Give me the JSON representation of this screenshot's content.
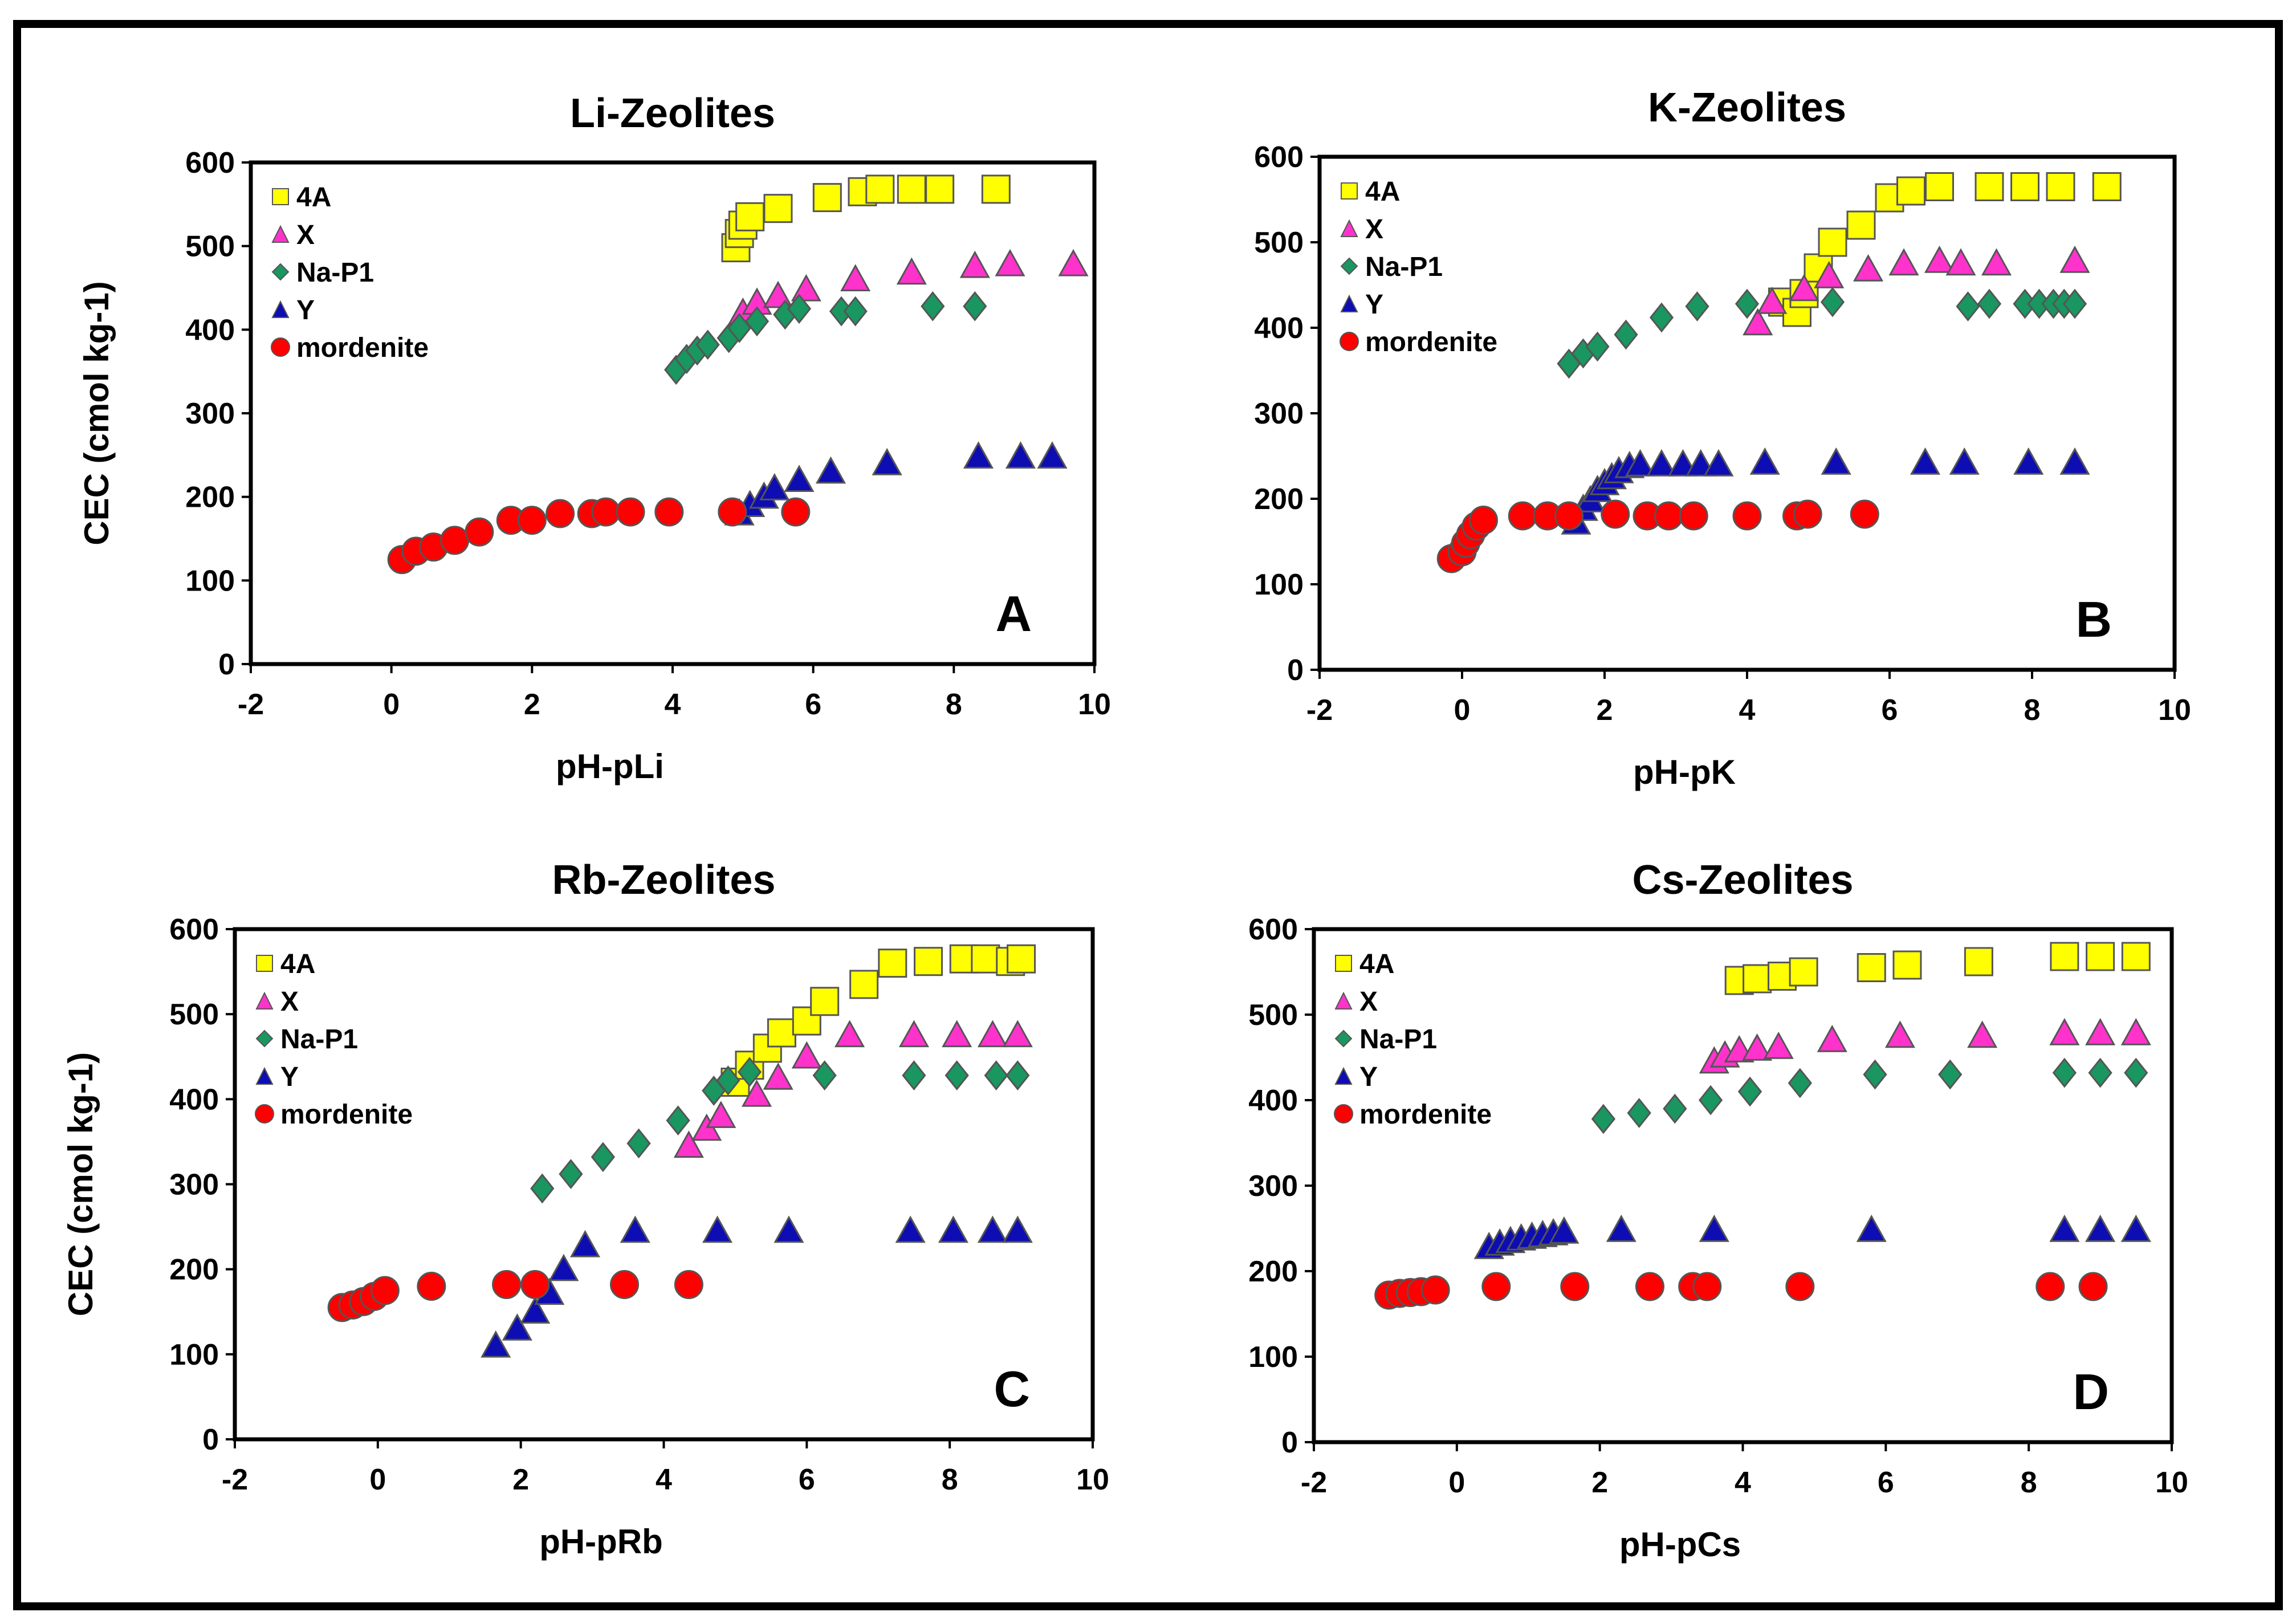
{
  "colors": {
    "4A": "#ffff00",
    "X": "#ff33cc",
    "Na-P1": "#1a9660",
    "Y": "#0d0db3",
    "mordenite": "#ff0000"
  },
  "chart_data": [
    {
      "type": "scatter",
      "title": "Li-Zeolites",
      "letter": "A",
      "xlabel": "pH-pLi",
      "ylabel": "CEC (cmol kg-1)",
      "xlim": [
        -2,
        10
      ],
      "ylim": [
        0,
        600
      ],
      "xticks": [
        "-2",
        "0",
        "2",
        "4",
        "6",
        "8",
        "10"
      ],
      "yticks": [
        "0",
        "100",
        "200",
        "300",
        "400",
        "500",
        "600"
      ],
      "series": [
        {
          "name": "4A",
          "marker": "square",
          "x": [
            4.9,
            4.95,
            5.0,
            5.1,
            5.5,
            6.2,
            6.7,
            6.95,
            7.4,
            7.8,
            8.6
          ],
          "y": [
            498,
            515,
            525,
            535,
            545,
            558,
            565,
            568,
            568,
            568,
            568
          ]
        },
        {
          "name": "X",
          "marker": "triangle",
          "x": [
            5.0,
            5.2,
            5.5,
            5.9,
            6.6,
            7.4,
            8.3,
            8.8,
            9.7
          ],
          "y": [
            420,
            432,
            440,
            448,
            460,
            468,
            476,
            478,
            478
          ]
        },
        {
          "name": "Na-P1",
          "marker": "diamond",
          "x": [
            4.05,
            4.2,
            4.35,
            4.5,
            4.8,
            4.95,
            5.2,
            5.6,
            5.8,
            6.4,
            6.6,
            7.7,
            8.3
          ],
          "y": [
            352,
            365,
            375,
            382,
            390,
            402,
            410,
            418,
            425,
            422,
            422,
            428,
            428
          ]
        },
        {
          "name": "Y",
          "marker": "triangle",
          "x": [
            4.95,
            5.1,
            5.3,
            5.45,
            5.8,
            6.25,
            7.05,
            8.35,
            8.95,
            9.4
          ],
          "y": [
            180,
            190,
            200,
            210,
            220,
            230,
            240,
            248,
            248,
            248
          ]
        },
        {
          "name": "mordenite",
          "marker": "circle",
          "x": [
            0.15,
            0.35,
            0.6,
            0.9,
            1.25,
            1.7,
            2.0,
            2.4,
            2.85,
            3.05,
            3.4,
            3.95,
            4.85,
            5.75
          ],
          "y": [
            125,
            135,
            140,
            148,
            158,
            172,
            172,
            180,
            180,
            182,
            182,
            182,
            182,
            182
          ]
        }
      ]
    },
    {
      "type": "scatter",
      "title": "K-Zeolites",
      "letter": "B",
      "xlabel": "pH-pK",
      "ylabel": "",
      "xlim": [
        -2,
        10
      ],
      "ylim": [
        0,
        600
      ],
      "xticks": [
        "-2",
        "0",
        "2",
        "4",
        "6",
        "8",
        "10"
      ],
      "yticks": [
        "0",
        "100",
        "200",
        "300",
        "400",
        "500",
        "600"
      ],
      "series": [
        {
          "name": "4A",
          "marker": "square",
          "x": [
            4.5,
            4.7,
            4.8,
            5.0,
            5.2,
            5.6,
            6.0,
            6.3,
            6.7,
            7.4,
            7.9,
            8.4,
            9.05
          ],
          "y": [
            430,
            418,
            440,
            470,
            500,
            520,
            552,
            560,
            565,
            565,
            565,
            565,
            565
          ]
        },
        {
          "name": "X",
          "marker": "triangle",
          "x": [
            4.15,
            4.35,
            4.8,
            5.15,
            5.7,
            6.2,
            6.7,
            7.0,
            7.5,
            8.6
          ],
          "y": [
            405,
            430,
            445,
            460,
            468,
            475,
            478,
            475,
            475,
            478
          ]
        },
        {
          "name": "Na-P1",
          "marker": "diamond",
          "x": [
            1.5,
            1.7,
            1.9,
            2.3,
            2.8,
            3.3,
            4.0,
            5.2,
            7.1,
            7.4,
            7.9,
            8.1,
            8.3,
            8.45,
            8.6
          ],
          "y": [
            358,
            370,
            378,
            392,
            412,
            425,
            428,
            430,
            425,
            428,
            428,
            428,
            428,
            428,
            428
          ]
        },
        {
          "name": "Y",
          "marker": "triangle",
          "x": [
            1.6,
            1.7,
            1.8,
            1.9,
            2.0,
            2.1,
            2.2,
            2.35,
            2.5,
            2.8,
            3.1,
            3.35,
            3.6,
            4.25,
            5.25,
            6.5,
            7.05,
            7.95,
            8.6
          ],
          "y": [
            172,
            188,
            198,
            210,
            218,
            225,
            232,
            238,
            240,
            240,
            240,
            240,
            240,
            242,
            242,
            242,
            242,
            242,
            242
          ]
        },
        {
          "name": "mordenite",
          "marker": "circle",
          "x": [
            -0.15,
            0.0,
            0.05,
            0.12,
            0.2,
            0.3,
            0.85,
            1.2,
            1.5,
            2.15,
            2.6,
            2.9,
            3.25,
            4.0,
            4.7,
            4.85,
            5.65
          ],
          "y": [
            130,
            138,
            148,
            158,
            168,
            175,
            180,
            180,
            180,
            182,
            180,
            180,
            180,
            180,
            180,
            182,
            182
          ]
        }
      ]
    },
    {
      "type": "scatter",
      "title": "Rb-Zeolites",
      "letter": "C",
      "xlabel": "pH-pRb",
      "ylabel": "CEC (cmol kg-1)",
      "xlim": [
        -2,
        10
      ],
      "ylim": [
        0,
        600
      ],
      "xticks": [
        "-2",
        "0",
        "2",
        "4",
        "6",
        "8",
        "10"
      ],
      "yticks": [
        "0",
        "100",
        "200",
        "300",
        "400",
        "500",
        "600"
      ],
      "series": [
        {
          "name": "4A",
          "marker": "square",
          "x": [
            5.0,
            5.2,
            5.45,
            5.65,
            6.0,
            6.25,
            6.8,
            7.2,
            7.7,
            8.2,
            8.5,
            8.85,
            9.0
          ],
          "y": [
            420,
            440,
            460,
            478,
            492,
            515,
            535,
            560,
            562,
            565,
            565,
            562,
            565
          ]
        },
        {
          "name": "X",
          "marker": "triangle",
          "x": [
            4.35,
            4.6,
            4.8,
            5.3,
            5.6,
            6.0,
            6.6,
            7.5,
            8.1,
            8.6,
            8.95
          ],
          "y": [
            345,
            365,
            380,
            405,
            425,
            450,
            475,
            475,
            475,
            475,
            475
          ]
        },
        {
          "name": "Na-P1",
          "marker": "diamond",
          "x": [
            2.3,
            2.7,
            3.15,
            3.65,
            4.2,
            4.7,
            4.9,
            5.2,
            6.25,
            7.5,
            8.1,
            8.65,
            8.95
          ],
          "y": [
            295,
            312,
            332,
            348,
            375,
            410,
            422,
            432,
            428,
            428,
            428,
            428,
            428
          ]
        },
        {
          "name": "Y",
          "marker": "triangle",
          "x": [
            1.65,
            1.95,
            2.2,
            2.4,
            2.6,
            2.9,
            3.6,
            4.75,
            5.75,
            7.45,
            8.05,
            8.6,
            8.95
          ],
          "y": [
            110,
            130,
            150,
            172,
            200,
            228,
            245,
            245,
            245,
            245,
            245,
            245,
            245
          ]
        },
        {
          "name": "mordenite",
          "marker": "circle",
          "x": [
            -0.5,
            -0.35,
            -0.2,
            -0.05,
            0.1,
            0.75,
            1.8,
            2.2,
            3.45,
            4.35
          ],
          "y": [
            155,
            158,
            162,
            168,
            175,
            180,
            182,
            182,
            182,
            182
          ]
        }
      ]
    },
    {
      "type": "scatter",
      "title": "Cs-Zeolites",
      "letter": "D",
      "xlabel": "pH-pCs",
      "ylabel": "",
      "xlim": [
        -2,
        10
      ],
      "ylim": [
        0,
        600
      ],
      "xticks": [
        "-2",
        "0",
        "2",
        "4",
        "6",
        "8",
        "10"
      ],
      "yticks": [
        "0",
        "100",
        "200",
        "300",
        "400",
        "500",
        "600"
      ],
      "series": [
        {
          "name": "4A",
          "marker": "square",
          "x": [
            3.95,
            4.2,
            4.55,
            4.85,
            5.8,
            6.3,
            7.3,
            8.5,
            9.0,
            9.5
          ],
          "y": [
            540,
            542,
            545,
            550,
            555,
            558,
            562,
            568,
            568,
            568
          ]
        },
        {
          "name": "X",
          "marker": "triangle",
          "x": [
            3.6,
            3.75,
            3.95,
            4.2,
            4.5,
            5.25,
            6.2,
            7.35,
            8.5,
            9.0,
            9.5
          ],
          "y": [
            445,
            452,
            458,
            460,
            462,
            470,
            475,
            475,
            478,
            478,
            478
          ]
        },
        {
          "name": "Na-P1",
          "marker": "diamond",
          "x": [
            2.05,
            2.55,
            3.05,
            3.55,
            4.1,
            4.8,
            5.85,
            6.9,
            8.5,
            9.0,
            9.5
          ],
          "y": [
            378,
            385,
            390,
            400,
            410,
            420,
            430,
            430,
            432,
            432,
            432
          ]
        },
        {
          "name": "Y",
          "marker": "triangle",
          "x": [
            0.45,
            0.6,
            0.75,
            0.9,
            1.05,
            1.2,
            1.35,
            1.5,
            2.3,
            3.6,
            5.8,
            8.5,
            9.0,
            9.5
          ],
          "y": [
            228,
            232,
            235,
            238,
            240,
            242,
            244,
            246,
            248,
            248,
            248,
            248,
            248,
            248
          ]
        },
        {
          "name": "mordenite",
          "marker": "circle",
          "x": [
            -0.95,
            -0.8,
            -0.65,
            -0.5,
            -0.3,
            0.55,
            1.65,
            2.7,
            3.3,
            3.5,
            4.8,
            8.3,
            8.9
          ],
          "y": [
            172,
            174,
            175,
            176,
            178,
            182,
            182,
            182,
            182,
            182,
            182,
            182,
            182
          ]
        }
      ]
    }
  ]
}
